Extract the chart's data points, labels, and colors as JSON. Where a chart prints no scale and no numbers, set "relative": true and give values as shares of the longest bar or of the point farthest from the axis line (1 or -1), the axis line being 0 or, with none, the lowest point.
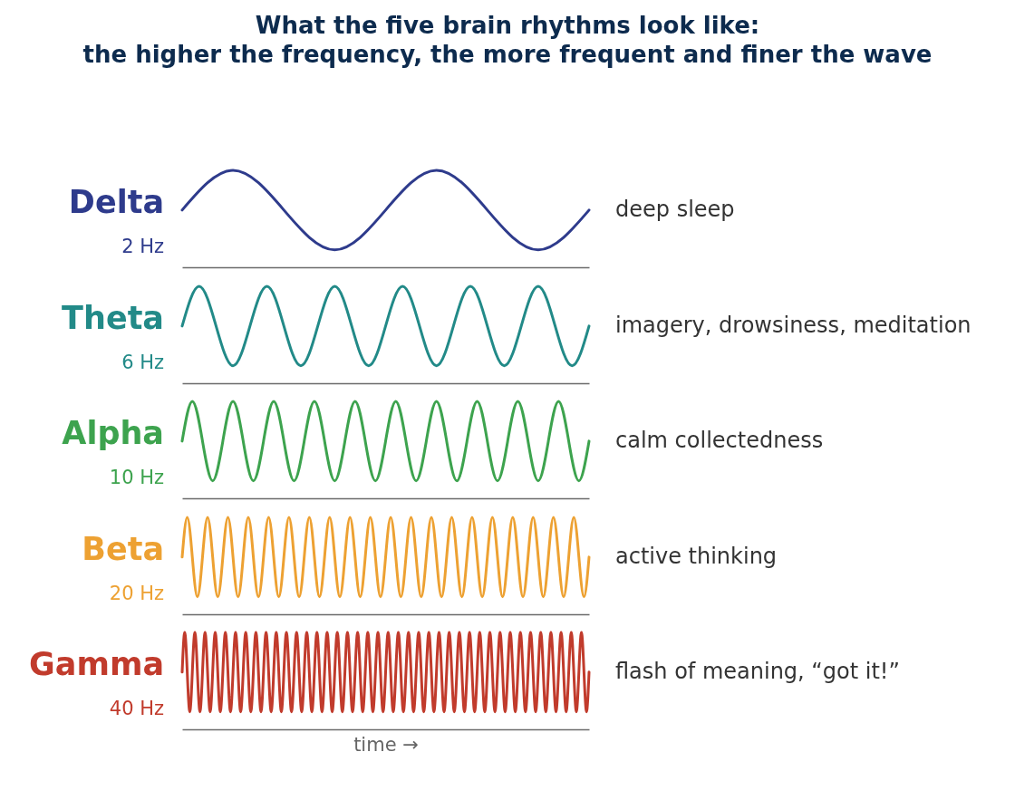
{
  "chart_data": [
    {
      "type": "line",
      "title": "What the five brain rhythms look like:\nthe higher the frequency, the more frequent and finer the wave",
      "relative": true,
      "categories": [
        null,
        null,
        null,
        null,
        null,
        null,
        null,
        null,
        null
      ],
      "series": [
        {
          "name": "Delta",
          "color": "#2e3b8c",
          "values": [
            0.59,
            1,
            0.59,
            0.18,
            0.59,
            1,
            0.59,
            0.18,
            0.59
          ]
        }
      ],
      "annotations": [
        "2 Hz",
        "deep sleep"
      ]
    },
    {
      "type": "line",
      "relative": true,
      "categories": [
        null,
        null,
        null,
        null,
        null,
        null,
        null,
        null,
        null,
        null,
        null,
        null,
        null,
        null,
        null,
        null,
        null,
        null,
        null,
        null,
        null,
        null,
        null,
        null,
        null
      ],
      "series": [
        {
          "name": "Theta",
          "color": "#228a88",
          "values": [
            0.59,
            1,
            0.59,
            0.18,
            0.59,
            1,
            0.59,
            0.18,
            0.59,
            1,
            0.59,
            0.18,
            0.59,
            1,
            0.59,
            0.18,
            0.59,
            1,
            0.59,
            0.18,
            0.59,
            1,
            0.59,
            0.18,
            0.59
          ]
        }
      ],
      "annotations": [
        "6 Hz",
        "imagery, drowsiness, meditation"
      ]
    },
    {
      "type": "line",
      "relative": true,
      "categories": [
        null,
        null,
        null,
        null,
        null,
        null,
        null,
        null,
        null,
        null,
        null,
        null,
        null,
        null,
        null,
        null,
        null,
        null,
        null,
        null,
        null,
        null,
        null,
        null,
        null,
        null,
        null,
        null,
        null,
        null,
        null,
        null,
        null,
        null,
        null,
        null,
        null,
        null,
        null,
        null,
        null
      ],
      "series": [
        {
          "name": "Alpha",
          "color": "#3da34e",
          "values": [
            0.59,
            1,
            0.59,
            0.18,
            0.59,
            1,
            0.59,
            0.18,
            0.59,
            1,
            0.59,
            0.18,
            0.59,
            1,
            0.59,
            0.18,
            0.59,
            1,
            0.59,
            0.18,
            0.59,
            1,
            0.59,
            0.18,
            0.59,
            1,
            0.59,
            0.18,
            0.59,
            1,
            0.59,
            0.18,
            0.59,
            1,
            0.59,
            0.18,
            0.59,
            1,
            0.59,
            0.18,
            0.59
          ]
        }
      ],
      "annotations": [
        "10 Hz",
        "calm collectedness"
      ]
    },
    {
      "type": "line",
      "relative": true,
      "categories": [
        null,
        null,
        null,
        null,
        null,
        null,
        null,
        null,
        null,
        null,
        null,
        null,
        null,
        null,
        null,
        null,
        null,
        null,
        null,
        null,
        null,
        null,
        null,
        null,
        null,
        null,
        null,
        null,
        null,
        null,
        null,
        null,
        null,
        null,
        null,
        null,
        null,
        null,
        null,
        null,
        null,
        null,
        null,
        null,
        null,
        null,
        null,
        null,
        null,
        null,
        null,
        null,
        null,
        null,
        null,
        null,
        null,
        null,
        null,
        null,
        null,
        null,
        null,
        null,
        null,
        null,
        null,
        null,
        null,
        null,
        null,
        null,
        null,
        null,
        null,
        null,
        null,
        null,
        null,
        null,
        null
      ],
      "series": [
        {
          "name": "Beta",
          "color": "#eda132",
          "values": [
            0.59,
            1,
            0.59,
            0.18,
            0.59,
            1,
            0.59,
            0.18,
            0.59,
            1,
            0.59,
            0.18,
            0.59,
            1,
            0.59,
            0.18,
            0.59,
            1,
            0.59,
            0.18,
            0.59,
            1,
            0.59,
            0.18,
            0.59,
            1,
            0.59,
            0.18,
            0.59,
            1,
            0.59,
            0.18,
            0.59,
            1,
            0.59,
            0.18,
            0.59,
            1,
            0.59,
            0.18,
            0.59,
            1,
            0.59,
            0.18,
            0.59,
            1,
            0.59,
            0.18,
            0.59,
            1,
            0.59,
            0.18,
            0.59,
            1,
            0.59,
            0.18,
            0.59,
            1,
            0.59,
            0.18,
            0.59,
            1,
            0.59,
            0.18,
            0.59,
            1,
            0.59,
            0.18,
            0.59,
            1,
            0.59,
            0.18,
            0.59,
            1,
            0.59,
            0.18,
            0.59,
            1,
            0.59,
            0.18,
            0.59
          ]
        }
      ],
      "annotations": [
        "20 Hz",
        "active thinking"
      ]
    },
    {
      "type": "line",
      "relative": true,
      "xlabel": "time →",
      "categories": [
        null,
        null,
        null,
        null,
        null,
        null,
        null,
        null,
        null,
        null,
        null,
        null,
        null,
        null,
        null,
        null,
        null,
        null,
        null,
        null,
        null,
        null,
        null,
        null,
        null,
        null,
        null,
        null,
        null,
        null,
        null,
        null,
        null,
        null,
        null,
        null,
        null,
        null,
        null,
        null,
        null,
        null,
        null,
        null,
        null,
        null,
        null,
        null,
        null,
        null,
        null,
        null,
        null,
        null,
        null,
        null,
        null,
        null,
        null,
        null,
        null,
        null,
        null,
        null,
        null,
        null,
        null,
        null,
        null,
        null,
        null,
        null,
        null,
        null,
        null,
        null,
        null,
        null,
        null,
        null,
        null,
        null,
        null,
        null,
        null,
        null,
        null,
        null,
        null,
        null,
        null,
        null,
        null,
        null,
        null,
        null,
        null,
        null,
        null,
        null,
        null,
        null,
        null,
        null,
        null,
        null,
        null,
        null,
        null,
        null,
        null,
        null,
        null,
        null,
        null,
        null,
        null,
        null,
        null,
        null,
        null,
        null,
        null,
        null,
        null,
        null,
        null,
        null,
        null,
        null,
        null,
        null,
        null,
        null,
        null,
        null,
        null,
        null,
        null,
        null,
        null,
        null,
        null,
        null,
        null,
        null,
        null,
        null,
        null,
        null,
        null,
        null,
        null,
        null,
        null,
        null,
        null,
        null,
        null,
        null,
        null
      ],
      "series": [
        {
          "name": "Gamma",
          "color": "#c13b2c",
          "values": [
            0.59,
            1,
            0.59,
            0.18,
            0.59,
            1,
            0.59,
            0.18,
            0.59,
            1,
            0.59,
            0.18,
            0.59,
            1,
            0.59,
            0.18,
            0.59,
            1,
            0.59,
            0.18,
            0.59,
            1,
            0.59,
            0.18,
            0.59,
            1,
            0.59,
            0.18,
            0.59,
            1,
            0.59,
            0.18,
            0.59,
            1,
            0.59,
            0.18,
            0.59,
            1,
            0.59,
            0.18,
            0.59,
            1,
            0.59,
            0.18,
            0.59,
            1,
            0.59,
            0.18,
            0.59,
            1,
            0.59,
            0.18,
            0.59,
            1,
            0.59,
            0.18,
            0.59,
            1,
            0.59,
            0.18,
            0.59,
            1,
            0.59,
            0.18,
            0.59,
            1,
            0.59,
            0.18,
            0.59,
            1,
            0.59,
            0.18,
            0.59,
            1,
            0.59,
            0.18,
            0.59,
            1,
            0.59,
            0.18,
            0.59,
            1,
            0.59,
            0.18,
            0.59,
            1,
            0.59,
            0.18,
            0.59,
            1,
            0.59,
            0.18,
            0.59,
            1,
            0.59,
            0.18,
            0.59,
            1,
            0.59,
            0.18,
            0.59,
            1,
            0.59,
            0.18,
            0.59,
            1,
            0.59,
            0.18,
            0.59,
            1,
            0.59,
            0.18,
            0.59,
            1,
            0.59,
            0.18,
            0.59,
            1,
            0.59,
            0.18,
            0.59,
            1,
            0.59,
            0.18,
            0.59,
            1,
            0.59,
            0.18,
            0.59,
            1,
            0.59,
            0.18,
            0.59,
            1,
            0.59,
            0.18,
            0.59,
            1,
            0.59,
            0.18,
            0.59,
            1,
            0.59,
            0.18,
            0.59,
            1,
            0.59,
            0.18,
            0.59,
            1,
            0.59,
            0.18,
            0.59,
            1,
            0.59,
            0.18,
            0.59,
            1,
            0.59,
            0.18,
            0.59
          ]
        }
      ],
      "annotations": [
        "40 Hz",
        "flash of meaning, “got it!”"
      ]
    }
  ]
}
